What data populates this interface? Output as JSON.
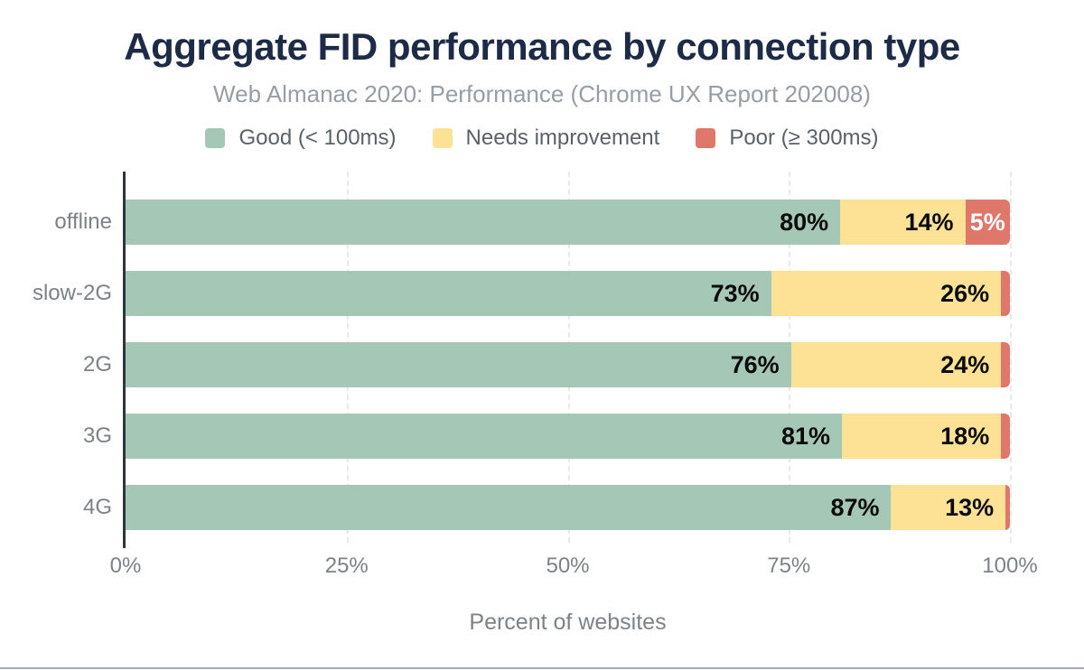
{
  "chart_data": {
    "type": "bar",
    "orientation": "horizontal",
    "stacked": true,
    "title": "Aggregate FID performance by connection type",
    "subtitle": "Web Almanac 2020: Performance (Chrome UX Report 202008)",
    "categories": [
      "offline",
      "slow-2G",
      "2G",
      "3G",
      "4G"
    ],
    "series": [
      {
        "name": "Good (< 100ms)",
        "color": "#a5c8b6",
        "values": [
          80,
          73,
          76,
          81,
          87
        ],
        "labels": [
          "80%",
          "73%",
          "76%",
          "81%",
          "87%"
        ],
        "label_style": "dark"
      },
      {
        "name": "Needs improvement",
        "color": "#fde296",
        "values": [
          14,
          26,
          24,
          18,
          13
        ],
        "labels": [
          "14%",
          "26%",
          "24%",
          "18%",
          "13%"
        ],
        "label_style": "dark"
      },
      {
        "name": "Poor (≥ 300ms)",
        "color": "#df776b",
        "values": [
          5,
          1,
          1,
          1,
          0.5
        ],
        "labels": [
          "5%",
          "",
          "",
          "",
          ""
        ],
        "label_style": "light"
      }
    ],
    "xlabel": "Percent of websites",
    "x_ticks": [
      "0%",
      "25%",
      "50%",
      "75%",
      "100%"
    ],
    "xlim": [
      0,
      100
    ],
    "grid": "vertical-dashed",
    "legend_position": "top",
    "colors": {
      "title": "#1e2b47",
      "subtitle": "#979da4",
      "axis_labels": "#7c8288",
      "axis_line": "#2f353b"
    }
  }
}
